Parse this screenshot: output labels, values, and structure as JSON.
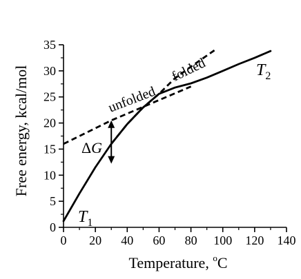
{
  "chart_data": {
    "type": "line",
    "xlabel": "Temperature, ",
    "xlabel_unit": "C",
    "xlabel_degree": "o",
    "ylabel": "Free energy, kcal/mol",
    "xlim": [
      0,
      140
    ],
    "ylim": [
      0,
      35
    ],
    "x_ticks": [
      0,
      20,
      40,
      60,
      80,
      100,
      120,
      140
    ],
    "y_ticks": [
      0,
      5,
      10,
      15,
      20,
      25,
      30,
      35
    ],
    "grid": false,
    "legend": "none",
    "series": [
      {
        "style": "solid",
        "x": [
          0,
          10,
          20,
          30,
          40,
          50,
          60,
          70,
          80,
          90,
          100,
          110,
          120,
          130
        ],
        "y": [
          1.2,
          6.5,
          11.5,
          16.0,
          19.8,
          23.0,
          25.6,
          26.8,
          27.6,
          28.7,
          30.0,
          31.3,
          32.5,
          33.8
        ]
      },
      {
        "style": "dashed",
        "x": [
          0,
          30,
          80
        ],
        "y": [
          16.0,
          20.5,
          27.0
        ]
      },
      {
        "style": "dashed",
        "x": [
          30,
          40,
          50,
          60,
          70,
          80,
          95
        ],
        "y": [
          16.0,
          19.8,
          23.0,
          25.6,
          28.6,
          30.8,
          34.0
        ]
      }
    ],
    "annotations": {
      "unfolded": "unfolded",
      "folded": "folded",
      "delta_g_symbol": "Δ",
      "delta_g_var": "G",
      "t1_var": "T",
      "t1_sub": "1",
      "t2_var": "T",
      "t2_sub": "2"
    },
    "delta_g_arrow": {
      "x": 30,
      "y_from": 20.5,
      "y_to": 12.2
    }
  }
}
